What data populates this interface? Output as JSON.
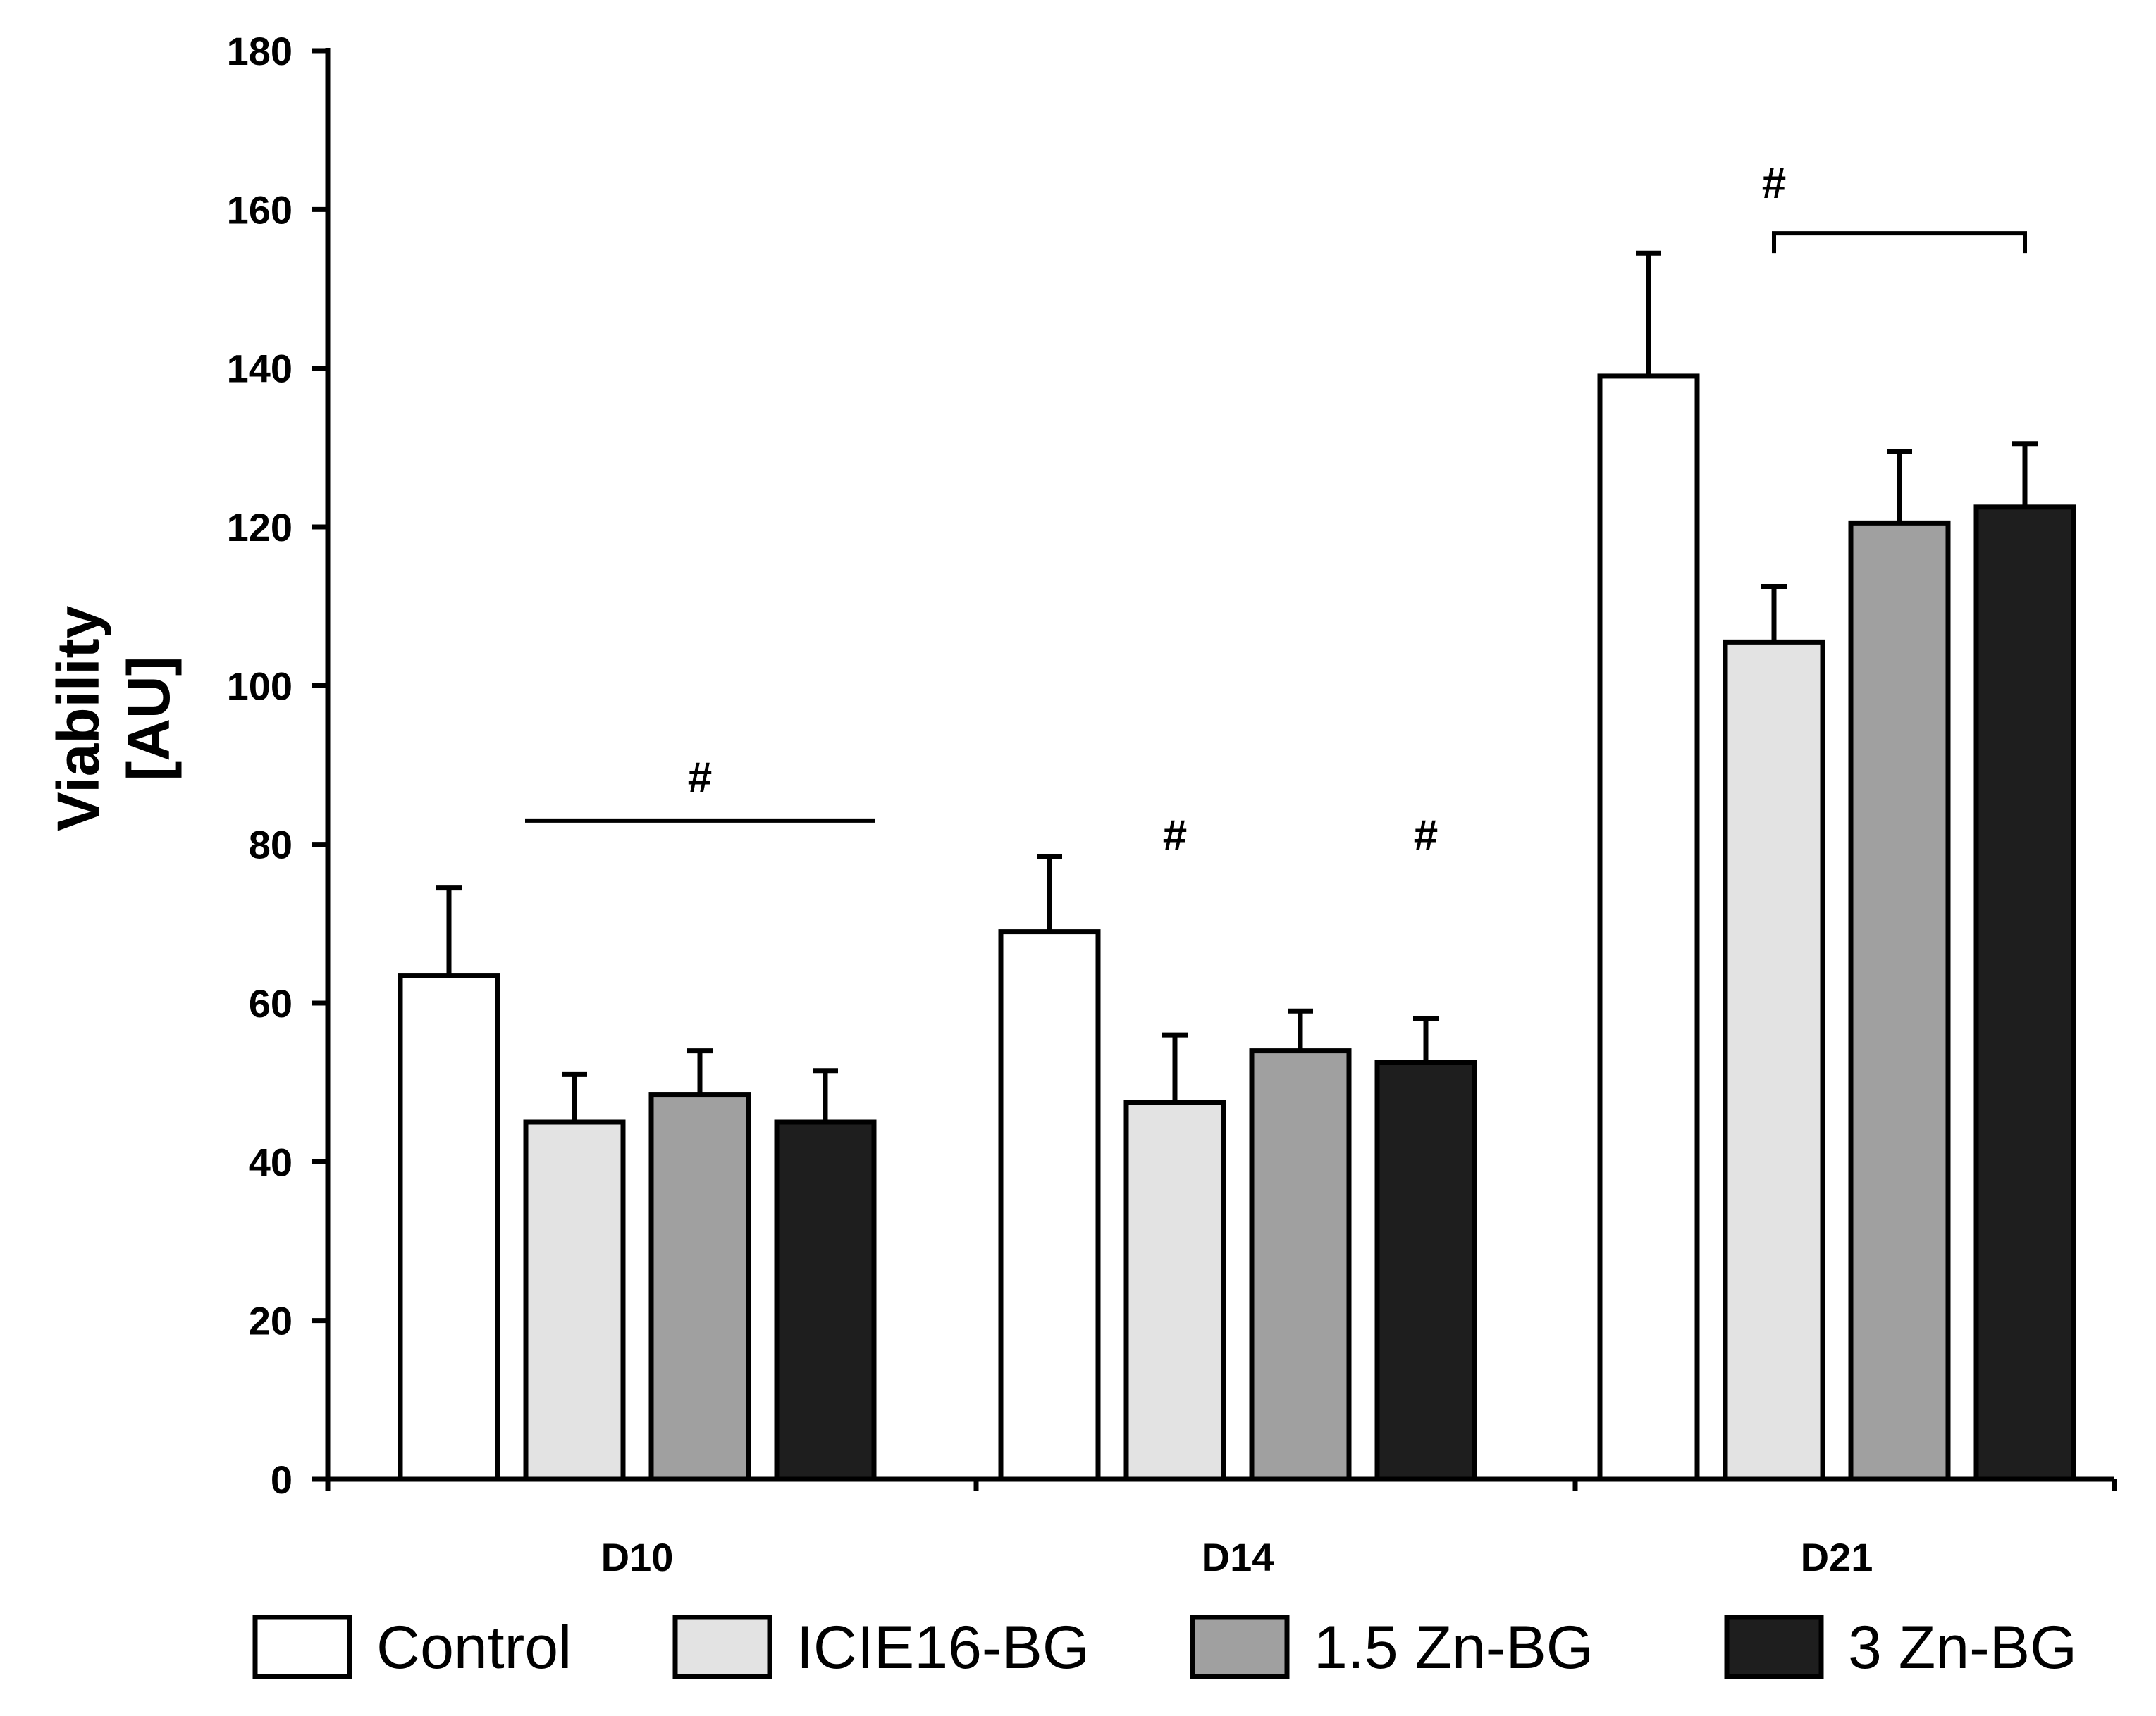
{
  "chart_data": {
    "type": "bar",
    "title": "",
    "xlabel": "",
    "ylabel": [
      "Viability",
      "[AU]"
    ],
    "ylim": [
      0,
      180
    ],
    "yticks": [
      0,
      20,
      40,
      60,
      80,
      100,
      120,
      140,
      160,
      180
    ],
    "categories": [
      "D10",
      "D14",
      "D21"
    ],
    "grid": false,
    "legend_position": "bottom",
    "series": [
      {
        "name": "Control",
        "color": "#ffffff",
        "values": [
          63.5,
          69,
          139
        ],
        "errors": [
          11,
          9.5,
          15.5
        ]
      },
      {
        "name": "ICIE16-BG",
        "color": "#e3e3e3",
        "values": [
          45,
          47.5,
          105.5
        ],
        "errors": [
          6,
          8.5,
          7
        ]
      },
      {
        "name": "1.5 Zn-BG",
        "color": "#a0a0a0",
        "values": [
          48.5,
          54,
          120.5
        ],
        "errors": [
          5.5,
          5,
          9
        ]
      },
      {
        "name": "3 Zn-BG",
        "color": "#1e1e1e",
        "values": [
          45,
          52.5,
          122.5
        ],
        "errors": [
          6.5,
          5.5,
          8
        ]
      }
    ],
    "annotations": [
      {
        "label": "#",
        "type": "line",
        "category": 0,
        "from_series": 1,
        "to_series": 3,
        "y": 83
      },
      {
        "label": "#",
        "type": "none",
        "category": 1,
        "from_series": 1,
        "to_series": 1,
        "y": 83
      },
      {
        "label": "#",
        "type": "none",
        "category": 1,
        "from_series": 3,
        "to_series": 3,
        "y": 83
      },
      {
        "label": "#",
        "type": "bracket",
        "category": 2,
        "from_series": 1,
        "to_series": 3,
        "y": 157
      }
    ]
  }
}
